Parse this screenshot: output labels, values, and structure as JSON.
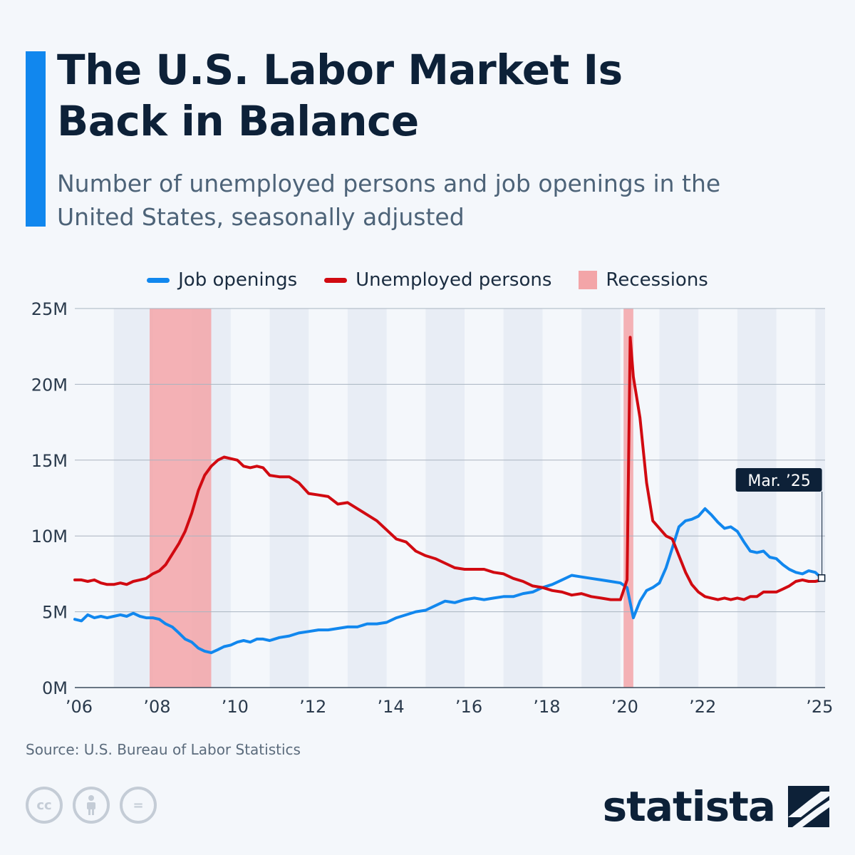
{
  "header": {
    "title": "The U.S. Labor Market Is Back in Balance",
    "subtitle": "Number of unemployed persons and job openings in the United States, seasonally adjusted"
  },
  "legend": {
    "job_openings": "Job openings",
    "unemployed": "Unemployed persons",
    "recessions": "Recessions"
  },
  "colors": {
    "job_openings": "#1187ee",
    "unemployed": "#d10a11",
    "recession": "#f3a5a8",
    "accent": "#1187ee"
  },
  "chart_data": {
    "type": "line",
    "title": "The U.S. Labor Market Is Back in Balance",
    "x_range": [
      2006,
      2025.25
    ],
    "ylim": [
      0,
      25
    ],
    "y_unit": "M",
    "y_ticks": [
      {
        "value": 0,
        "label": "0M"
      },
      {
        "value": 5,
        "label": "5M"
      },
      {
        "value": 10,
        "label": "10M"
      },
      {
        "value": 15,
        "label": "15M"
      },
      {
        "value": 20,
        "label": "20M"
      },
      {
        "value": 25,
        "label": "25M"
      }
    ],
    "x_ticks": [
      {
        "value": 2006,
        "label": "’06"
      },
      {
        "value": 2008,
        "label": "’08"
      },
      {
        "value": 2010,
        "label": "’10"
      },
      {
        "value": 2012,
        "label": "’12"
      },
      {
        "value": 2014,
        "label": "’14"
      },
      {
        "value": 2016,
        "label": "’16"
      },
      {
        "value": 2018,
        "label": "’18"
      },
      {
        "value": 2020,
        "label": "’20"
      },
      {
        "value": 2022,
        "label": "’22"
      },
      {
        "value": 2025,
        "label": "’25"
      }
    ],
    "recessions": [
      {
        "start": 2007.92,
        "end": 2009.5
      },
      {
        "start": 2020.08,
        "end": 2020.33
      }
    ],
    "annotation": {
      "label": "Mar. ’25",
      "x": 2025.17,
      "y": 7.2
    },
    "series": [
      {
        "name": "Job openings",
        "key": "job_openings",
        "points": [
          [
            2006.0,
            4.5
          ],
          [
            2006.17,
            4.4
          ],
          [
            2006.33,
            4.8
          ],
          [
            2006.5,
            4.6
          ],
          [
            2006.67,
            4.7
          ],
          [
            2006.83,
            4.6
          ],
          [
            2007.0,
            4.7
          ],
          [
            2007.17,
            4.8
          ],
          [
            2007.33,
            4.7
          ],
          [
            2007.5,
            4.9
          ],
          [
            2007.67,
            4.7
          ],
          [
            2007.83,
            4.6
          ],
          [
            2008.0,
            4.6
          ],
          [
            2008.17,
            4.5
          ],
          [
            2008.33,
            4.2
          ],
          [
            2008.5,
            4.0
          ],
          [
            2008.67,
            3.6
          ],
          [
            2008.83,
            3.2
          ],
          [
            2009.0,
            3.0
          ],
          [
            2009.17,
            2.6
          ],
          [
            2009.33,
            2.4
          ],
          [
            2009.5,
            2.3
          ],
          [
            2009.67,
            2.5
          ],
          [
            2009.83,
            2.7
          ],
          [
            2010.0,
            2.8
          ],
          [
            2010.17,
            3.0
          ],
          [
            2010.33,
            3.1
          ],
          [
            2010.5,
            3.0
          ],
          [
            2010.67,
            3.2
          ],
          [
            2010.83,
            3.2
          ],
          [
            2011.0,
            3.1
          ],
          [
            2011.25,
            3.3
          ],
          [
            2011.5,
            3.4
          ],
          [
            2011.75,
            3.6
          ],
          [
            2012.0,
            3.7
          ],
          [
            2012.25,
            3.8
          ],
          [
            2012.5,
            3.8
          ],
          [
            2012.75,
            3.9
          ],
          [
            2013.0,
            4.0
          ],
          [
            2013.25,
            4.0
          ],
          [
            2013.5,
            4.2
          ],
          [
            2013.75,
            4.2
          ],
          [
            2014.0,
            4.3
          ],
          [
            2014.25,
            4.6
          ],
          [
            2014.5,
            4.8
          ],
          [
            2014.75,
            5.0
          ],
          [
            2015.0,
            5.1
          ],
          [
            2015.25,
            5.4
          ],
          [
            2015.5,
            5.7
          ],
          [
            2015.75,
            5.6
          ],
          [
            2016.0,
            5.8
          ],
          [
            2016.25,
            5.9
          ],
          [
            2016.5,
            5.8
          ],
          [
            2016.75,
            5.9
          ],
          [
            2017.0,
            6.0
          ],
          [
            2017.25,
            6.0
          ],
          [
            2017.5,
            6.2
          ],
          [
            2017.75,
            6.3
          ],
          [
            2018.0,
            6.6
          ],
          [
            2018.25,
            6.8
          ],
          [
            2018.5,
            7.1
          ],
          [
            2018.75,
            7.4
          ],
          [
            2019.0,
            7.3
          ],
          [
            2019.25,
            7.2
          ],
          [
            2019.5,
            7.1
          ],
          [
            2019.75,
            7.0
          ],
          [
            2020.0,
            6.9
          ],
          [
            2020.17,
            6.6
          ],
          [
            2020.33,
            4.6
          ],
          [
            2020.5,
            5.7
          ],
          [
            2020.67,
            6.4
          ],
          [
            2020.83,
            6.6
          ],
          [
            2021.0,
            6.9
          ],
          [
            2021.17,
            7.9
          ],
          [
            2021.33,
            9.2
          ],
          [
            2021.5,
            10.6
          ],
          [
            2021.67,
            11.0
          ],
          [
            2021.83,
            11.1
          ],
          [
            2022.0,
            11.3
          ],
          [
            2022.17,
            11.8
          ],
          [
            2022.33,
            11.4
          ],
          [
            2022.5,
            10.9
          ],
          [
            2022.67,
            10.5
          ],
          [
            2022.83,
            10.6
          ],
          [
            2023.0,
            10.3
          ],
          [
            2023.17,
            9.6
          ],
          [
            2023.33,
            9.0
          ],
          [
            2023.5,
            8.9
          ],
          [
            2023.67,
            9.0
          ],
          [
            2023.83,
            8.6
          ],
          [
            2024.0,
            8.5
          ],
          [
            2024.17,
            8.1
          ],
          [
            2024.33,
            7.8
          ],
          [
            2024.5,
            7.6
          ],
          [
            2024.67,
            7.5
          ],
          [
            2024.83,
            7.7
          ],
          [
            2025.0,
            7.6
          ],
          [
            2025.17,
            7.2
          ]
        ]
      },
      {
        "name": "Unemployed persons",
        "key": "unemployed",
        "points": [
          [
            2006.0,
            7.1
          ],
          [
            2006.17,
            7.1
          ],
          [
            2006.33,
            7.0
          ],
          [
            2006.5,
            7.1
          ],
          [
            2006.67,
            6.9
          ],
          [
            2006.83,
            6.8
          ],
          [
            2007.0,
            6.8
          ],
          [
            2007.17,
            6.9
          ],
          [
            2007.33,
            6.8
          ],
          [
            2007.5,
            7.0
          ],
          [
            2007.67,
            7.1
          ],
          [
            2007.83,
            7.2
          ],
          [
            2008.0,
            7.5
          ],
          [
            2008.17,
            7.7
          ],
          [
            2008.33,
            8.1
          ],
          [
            2008.5,
            8.8
          ],
          [
            2008.67,
            9.5
          ],
          [
            2008.83,
            10.3
          ],
          [
            2009.0,
            11.5
          ],
          [
            2009.17,
            13.0
          ],
          [
            2009.33,
            14.0
          ],
          [
            2009.5,
            14.6
          ],
          [
            2009.67,
            15.0
          ],
          [
            2009.83,
            15.2
          ],
          [
            2010.0,
            15.1
          ],
          [
            2010.17,
            15.0
          ],
          [
            2010.33,
            14.6
          ],
          [
            2010.5,
            14.5
          ],
          [
            2010.67,
            14.6
          ],
          [
            2010.83,
            14.5
          ],
          [
            2011.0,
            14.0
          ],
          [
            2011.25,
            13.9
          ],
          [
            2011.5,
            13.9
          ],
          [
            2011.75,
            13.5
          ],
          [
            2012.0,
            12.8
          ],
          [
            2012.25,
            12.7
          ],
          [
            2012.5,
            12.6
          ],
          [
            2012.75,
            12.1
          ],
          [
            2013.0,
            12.2
          ],
          [
            2013.25,
            11.8
          ],
          [
            2013.5,
            11.4
          ],
          [
            2013.75,
            11.0
          ],
          [
            2014.0,
            10.4
          ],
          [
            2014.25,
            9.8
          ],
          [
            2014.5,
            9.6
          ],
          [
            2014.75,
            9.0
          ],
          [
            2015.0,
            8.7
          ],
          [
            2015.25,
            8.5
          ],
          [
            2015.5,
            8.2
          ],
          [
            2015.75,
            7.9
          ],
          [
            2016.0,
            7.8
          ],
          [
            2016.25,
            7.8
          ],
          [
            2016.5,
            7.8
          ],
          [
            2016.75,
            7.6
          ],
          [
            2017.0,
            7.5
          ],
          [
            2017.25,
            7.2
          ],
          [
            2017.5,
            7.0
          ],
          [
            2017.75,
            6.7
          ],
          [
            2018.0,
            6.6
          ],
          [
            2018.25,
            6.4
          ],
          [
            2018.5,
            6.3
          ],
          [
            2018.75,
            6.1
          ],
          [
            2019.0,
            6.2
          ],
          [
            2019.25,
            6.0
          ],
          [
            2019.5,
            5.9
          ],
          [
            2019.75,
            5.8
          ],
          [
            2020.0,
            5.8
          ],
          [
            2020.17,
            7.1
          ],
          [
            2020.25,
            23.1
          ],
          [
            2020.33,
            20.5
          ],
          [
            2020.5,
            17.8
          ],
          [
            2020.67,
            13.5
          ],
          [
            2020.83,
            11.0
          ],
          [
            2021.0,
            10.5
          ],
          [
            2021.17,
            10.0
          ],
          [
            2021.33,
            9.8
          ],
          [
            2021.5,
            8.7
          ],
          [
            2021.67,
            7.6
          ],
          [
            2021.83,
            6.8
          ],
          [
            2022.0,
            6.3
          ],
          [
            2022.17,
            6.0
          ],
          [
            2022.33,
            5.9
          ],
          [
            2022.5,
            5.8
          ],
          [
            2022.67,
            5.9
          ],
          [
            2022.83,
            5.8
          ],
          [
            2023.0,
            5.9
          ],
          [
            2023.17,
            5.8
          ],
          [
            2023.33,
            6.0
          ],
          [
            2023.5,
            6.0
          ],
          [
            2023.67,
            6.3
          ],
          [
            2023.83,
            6.3
          ],
          [
            2024.0,
            6.3
          ],
          [
            2024.17,
            6.5
          ],
          [
            2024.33,
            6.7
          ],
          [
            2024.5,
            7.0
          ],
          [
            2024.67,
            7.1
          ],
          [
            2024.83,
            7.0
          ],
          [
            2025.0,
            7.0
          ],
          [
            2025.17,
            7.1
          ]
        ]
      }
    ]
  },
  "footer": {
    "source": "Source: U.S. Bureau of Labor Statistics",
    "cc_label": "cc",
    "nd_label": "=",
    "brand": "statista"
  }
}
